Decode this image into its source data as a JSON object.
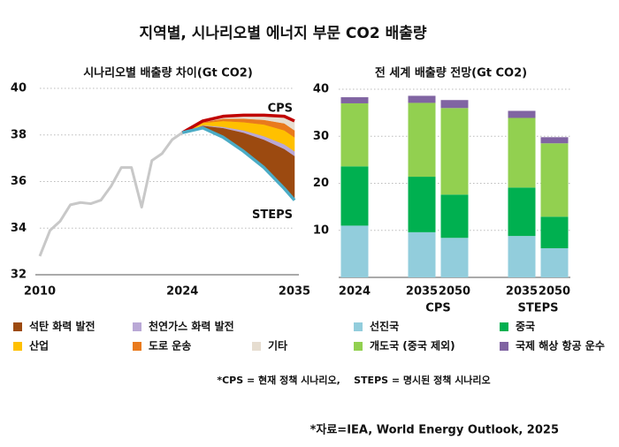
{
  "title": "지역별, 시나리오별 에너지 부문 CO2 배출량",
  "footnote": "*CPS = 현재 정책 시나리오,    STEPS = 명시된 정책 시나리오",
  "source": "*자료=IEA, World Energy Outlook, 2025",
  "chart_data": [
    {
      "type": "line",
      "title": "시나리오별 배출량 차이(Gt CO2)",
      "xlim": [
        2010,
        2035
      ],
      "xticks": [
        2010,
        2024,
        2035
      ],
      "ylim": [
        32,
        40
      ],
      "yticks": [
        32,
        34,
        36,
        38,
        40
      ],
      "grid": true,
      "series": [
        {
          "color": "#c8c8c8",
          "x": [
            2010,
            2011,
            2012,
            2013,
            2014,
            2015,
            2016,
            2017,
            2018,
            2019,
            2020,
            2021,
            2022,
            2023,
            2024
          ],
          "values": [
            32.8,
            33.9,
            34.3,
            35.0,
            35.1,
            35.05,
            35.2,
            35.8,
            36.6,
            36.6,
            34.9,
            36.9,
            37.2,
            37.8,
            38.1
          ]
        },
        {
          "name": "CPS",
          "color": "#c00000",
          "x": [
            2024,
            2026,
            2028,
            2030,
            2032,
            2034,
            2035
          ],
          "values": [
            38.1,
            38.6,
            38.8,
            38.85,
            38.85,
            38.8,
            38.6
          ]
        },
        {
          "name": "STEPS",
          "color": "#4bacc6",
          "x": [
            2024,
            2026,
            2028,
            2030,
            2032,
            2034,
            2035
          ],
          "values": [
            38.1,
            38.3,
            37.9,
            37.3,
            36.6,
            35.7,
            35.2
          ]
        }
      ],
      "area_series": [
        {
          "name": "석탄 화력 발전",
          "color": "#9c4a10",
          "x": [
            2024,
            2026,
            2028,
            2030,
            2032,
            2034,
            2035
          ],
          "values": [
            0,
            0.1,
            0.4,
            0.8,
            1.2,
            1.7,
            1.9
          ]
        },
        {
          "name": "천연가스 화력 발전",
          "color": "#b9a8d6",
          "x": [
            2024,
            2026,
            2028,
            2030,
            2032,
            2034,
            2035
          ],
          "values": [
            0,
            0.02,
            0.05,
            0.1,
            0.15,
            0.2,
            0.2
          ]
        },
        {
          "name": "산업",
          "color": "#ffc000",
          "x": [
            2024,
            2026,
            2028,
            2030,
            2032,
            2034,
            2035
          ],
          "values": [
            0,
            0.1,
            0.25,
            0.35,
            0.5,
            0.6,
            0.6
          ]
        },
        {
          "name": "도로 운송",
          "color": "#e97a1d",
          "x": [
            2024,
            2026,
            2028,
            2030,
            2032,
            2034,
            2035
          ],
          "values": [
            0,
            0.03,
            0.1,
            0.15,
            0.2,
            0.3,
            0.3
          ]
        },
        {
          "name": "기타",
          "color": "#e6ddd0",
          "x": [
            2024,
            2026,
            2028,
            2030,
            2032,
            2034,
            2035
          ],
          "values": [
            0,
            0.05,
            0.1,
            0.15,
            0.2,
            0.3,
            0.4
          ]
        }
      ]
    },
    {
      "type": "bar",
      "stacked": true,
      "title": "전 세계 배출량 전망(Gt CO2)",
      "groups": [
        {
          "categories": [
            "2024"
          ]
        },
        {
          "label": "CPS",
          "categories": [
            "2035",
            "2050"
          ]
        },
        {
          "label": "STEPS",
          "categories": [
            "2035",
            "2050"
          ]
        }
      ],
      "ylim": [
        0,
        40
      ],
      "yticks": [
        10,
        20,
        30,
        40
      ],
      "grid": true,
      "series": [
        {
          "name": "선진국",
          "color": "#92cddc",
          "values": [
            11.0,
            9.6,
            8.4,
            8.8,
            6.2
          ]
        },
        {
          "name": "중국",
          "color": "#00b050",
          "values": [
            12.6,
            11.8,
            9.2,
            10.3,
            6.7
          ]
        },
        {
          "name": "개도국 (중국 제외)",
          "color": "#92d050",
          "values": [
            13.4,
            15.7,
            18.4,
            14.8,
            15.6
          ]
        },
        {
          "name": "국제 해상 항공 운수",
          "color": "#8064a2",
          "values": [
            1.3,
            1.5,
            1.7,
            1.5,
            1.3
          ]
        }
      ]
    }
  ]
}
